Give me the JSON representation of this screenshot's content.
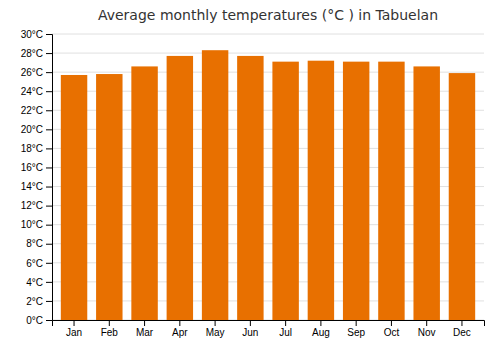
{
  "chart_data": {
    "type": "bar",
    "title": "Average monthly temperatures (°C ) in Tabuelan",
    "categories": [
      "Jan",
      "Feb",
      "Mar",
      "Apr",
      "May",
      "Jun",
      "Jul",
      "Aug",
      "Sep",
      "Oct",
      "Nov",
      "Dec"
    ],
    "values": [
      25.7,
      25.8,
      26.6,
      27.7,
      28.3,
      27.7,
      27.1,
      27.2,
      27.1,
      27.1,
      26.6,
      25.9
    ],
    "color": "#E87000",
    "ylim": [
      0,
      30
    ],
    "yticks": [
      {
        "value": 0,
        "label": "0°C"
      },
      {
        "value": 2,
        "label": "2°C"
      },
      {
        "value": 4,
        "label": "4°C"
      },
      {
        "value": 6,
        "label": "6°C"
      },
      {
        "value": 8,
        "label": "8°C"
      },
      {
        "value": 10,
        "label": "10°C"
      },
      {
        "value": 12,
        "label": "12°C"
      },
      {
        "value": 14,
        "label": "14°C"
      },
      {
        "value": 16,
        "label": "16°C"
      },
      {
        "value": 18,
        "label": "18°C"
      },
      {
        "value": 20,
        "label": "20°C"
      },
      {
        "value": 22,
        "label": "22°C"
      },
      {
        "value": 24,
        "label": "24°C"
      },
      {
        "value": 26,
        "label": "26°C"
      },
      {
        "value": 28,
        "label": "28°C"
      },
      {
        "value": 30,
        "label": "30°C"
      }
    ],
    "grid": true
  }
}
